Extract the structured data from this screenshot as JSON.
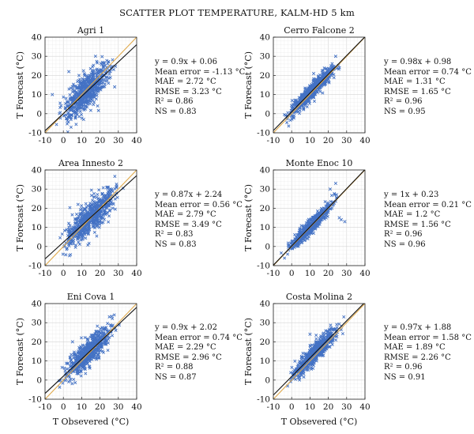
{
  "figure": {
    "title": "SCATTER PLOT TEMPERATURE, KALM-HD 5 km",
    "xlabel_bottom": "T Obsevered (°C)",
    "marker_color": "#4472c4",
    "line_color": "#111111",
    "one_to_one_color": "#e0a94a"
  },
  "chart_data": [
    {
      "type": "scatter",
      "title": "Agri 1",
      "xlabel": "",
      "ylabel": "T Forecast (°C)",
      "xlim": [
        -10,
        40
      ],
      "ylim": [
        -10,
        40
      ],
      "x_ticks": [
        "-10",
        "0",
        "10",
        "20",
        "30",
        "40"
      ],
      "y_ticks": [
        "40",
        "30",
        "20",
        "10",
        "0",
        "-10"
      ],
      "regression": {
        "slope": 0.9,
        "intercept": 0.06
      },
      "x_extent": [
        -8,
        33
      ],
      "spread": 4.5,
      "outliers": [
        [
          3,
          22
        ],
        [
          28,
          14
        ],
        [
          -6,
          10
        ]
      ],
      "stats": [
        "y = 0.9x + 0.06",
        "Mean error = -1.13 °C",
        "MAE = 2.72 °C",
        "RMSE = 3.23 °C",
        "R² = 0.86",
        "NS = 0.83"
      ]
    },
    {
      "type": "scatter",
      "title": "Cerro Falcone 2",
      "xlabel": "",
      "ylabel": "T Forecast (°C)",
      "xlim": [
        -10,
        40
      ],
      "ylim": [
        -10,
        40
      ],
      "x_ticks": [
        "-10",
        "0",
        "10",
        "20",
        "30",
        "40"
      ],
      "y_ticks": [
        "40",
        "30",
        "20",
        "10",
        "0",
        "-10"
      ],
      "regression": {
        "slope": 0.98,
        "intercept": 0.98
      },
      "x_extent": [
        -8,
        30
      ],
      "spread": 2.0,
      "outliers": [
        [
          12,
          21
        ],
        [
          24,
          30
        ]
      ],
      "stats": [
        "y = 0.98x + 0.98",
        "Mean error = 0.74 °C",
        "MAE = 1.31 °C",
        "RMSE = 1.65 °C",
        "R² = 0.96",
        "NS = 0.95"
      ]
    },
    {
      "type": "scatter",
      "title": "Area Innesto 2",
      "xlabel": "",
      "ylabel": "T Forecast (°C)",
      "xlim": [
        -10,
        40
      ],
      "ylim": [
        -10,
        40
      ],
      "x_ticks": [
        "-10",
        "0",
        "10",
        "20",
        "30",
        "40"
      ],
      "y_ticks": [
        "40",
        "30",
        "20",
        "10",
        "0",
        "-10"
      ],
      "regression": {
        "slope": 0.87,
        "intercept": 2.24
      },
      "x_extent": [
        -7,
        37
      ],
      "spread": 4.2,
      "outliers": [
        [
          8,
          22
        ]
      ],
      "stats": [
        "y = 0.87x + 2.24",
        "Mean error = 0.56 °C",
        "MAE = 2.79 °C",
        "RMSE = 3.49 °C",
        "R² = 0.83",
        "NS = 0.83"
      ]
    },
    {
      "type": "scatter",
      "title": "Monte Enoc 10",
      "xlabel": "",
      "ylabel": "T Forecast (°C)",
      "xlim": [
        -10,
        40
      ],
      "ylim": [
        -10,
        40
      ],
      "x_ticks": [
        "-10",
        "0",
        "10",
        "20",
        "30",
        "40"
      ],
      "y_ticks": [
        "40",
        "30",
        "20",
        "10",
        "0",
        "-10"
      ],
      "regression": {
        "slope": 1,
        "intercept": 0.23
      },
      "x_extent": [
        -8,
        29
      ],
      "spread": 1.8,
      "outliers": [
        [
          27,
          14
        ],
        [
          29,
          13
        ],
        [
          26,
          15
        ],
        [
          21,
          30
        ],
        [
          24,
          33
        ]
      ],
      "stats": [
        "y = 1x + 0.23",
        "Mean error = 0.21 °C",
        "MAE = 1.2 °C",
        "RMSE = 1.56 °C",
        "R² = 0.96",
        "NS = 0.96"
      ]
    },
    {
      "type": "scatter",
      "title": "Eni Cova 1",
      "xlabel": "T Obsevered (°C)",
      "ylabel": "T Forecast (°C)",
      "xlim": [
        -10,
        40
      ],
      "ylim": [
        -10,
        40
      ],
      "x_ticks": [
        "-10",
        "0",
        "10",
        "20",
        "30",
        "40"
      ],
      "y_ticks": [
        "40",
        "30",
        "20",
        "10",
        "0",
        "-10"
      ],
      "regression": {
        "slope": 0.9,
        "intercept": 2.02
      },
      "x_extent": [
        -7,
        35
      ],
      "spread": 3.4,
      "outliers": [
        [
          5,
          20
        ]
      ],
      "stats": [
        "y = 0.9x + 2.02",
        "Mean error = 0.74 °C",
        "MAE = 2.29 °C",
        "RMSE = 2.96 °C",
        "R² = 0.88",
        "NS = 0.87"
      ]
    },
    {
      "type": "scatter",
      "title": "Costa Molina 2",
      "xlabel": "T Obsevered (°C)",
      "ylabel": "T Forecast (°C)",
      "xlim": [
        -10,
        40
      ],
      "ylim": [
        -10,
        40
      ],
      "x_ticks": [
        "-10",
        "0",
        "10",
        "20",
        "30",
        "40"
      ],
      "y_ticks": [
        "40",
        "30",
        "20",
        "10",
        "0",
        "-10"
      ],
      "regression": {
        "slope": 0.97,
        "intercept": 1.88
      },
      "x_extent": [
        -7,
        33
      ],
      "spread": 2.4,
      "outliers": [
        [
          10,
          24
        ]
      ],
      "stats": [
        "y = 0.97x + 1.88",
        "Mean error = 1.58 °C",
        "MAE = 1.89 °C",
        "RMSE = 2.26 °C",
        "R² = 0.96",
        "NS = 0.91"
      ]
    }
  ]
}
